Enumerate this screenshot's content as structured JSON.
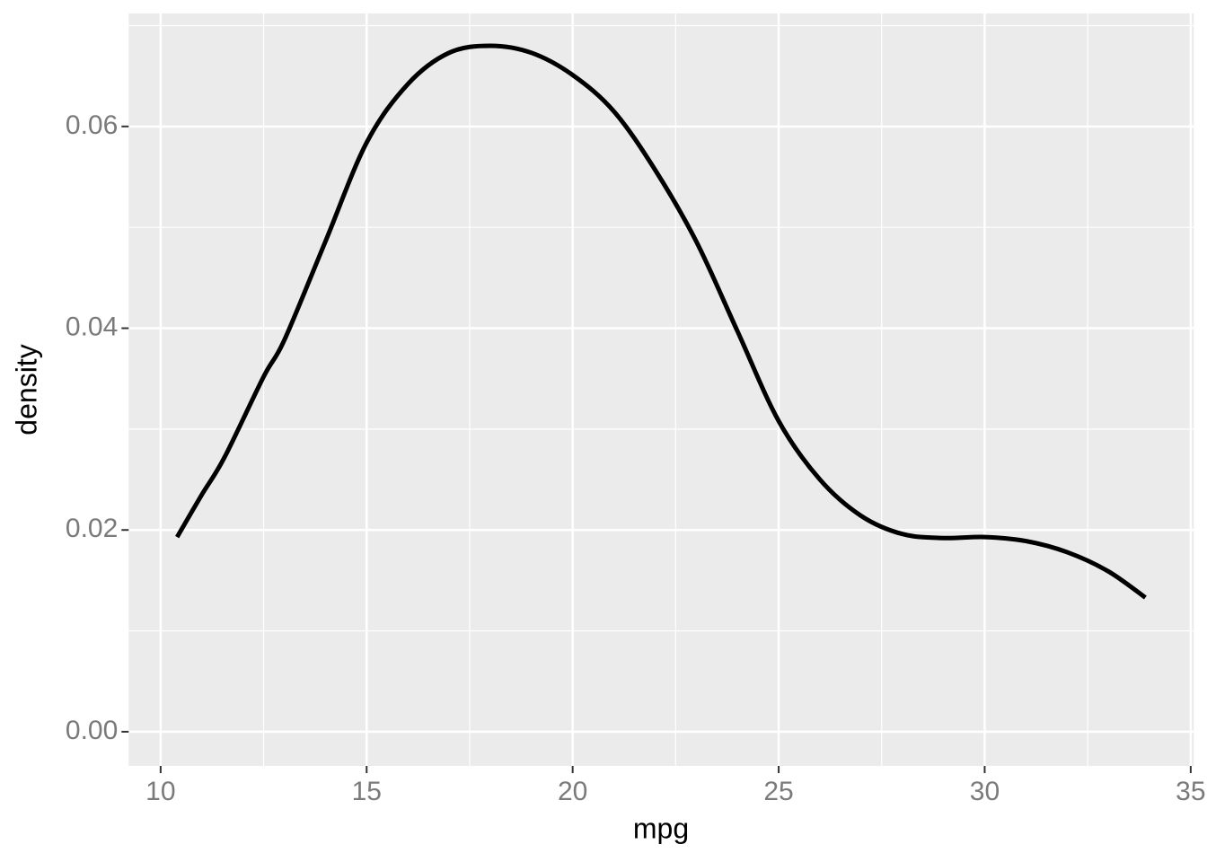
{
  "chart_data": {
    "type": "line",
    "x_label": "mpg",
    "y_label": "density",
    "x": [
      10.4,
      11,
      11.55,
      12.5,
      13,
      14,
      15,
      16,
      17,
      18,
      19,
      20,
      21,
      22,
      23,
      24,
      25,
      26,
      27,
      28,
      29,
      30,
      31,
      32,
      33,
      33.9
    ],
    "series": [
      {
        "color": "#000000",
        "values": [
          0.0193,
          0.0235,
          0.0272,
          0.0352,
          0.0388,
          0.0486,
          0.0584,
          0.0642,
          0.0673,
          0.068,
          0.0673,
          0.0651,
          0.0615,
          0.0557,
          0.0486,
          0.0397,
          0.0308,
          0.025,
          0.0214,
          0.0196,
          0.0192,
          0.0193,
          0.0189,
          0.0178,
          0.0159,
          0.0133
        ]
      }
    ],
    "xlim": [
      9.225,
      35.075
    ],
    "ylim": [
      -0.00339,
      0.0712
    ],
    "xticks": [
      10,
      15,
      20,
      25,
      30,
      35
    ],
    "yticks": [
      {
        "value": 0,
        "label": "0.00"
      },
      0.02,
      0.04,
      0.06
    ],
    "x_minor_ticks": [
      12.5,
      17.5,
      22.5,
      27.5,
      32.5
    ],
    "y_minor_ticks": [
      0.01,
      0.03,
      0.05,
      0.07
    ],
    "grid": true
  }
}
